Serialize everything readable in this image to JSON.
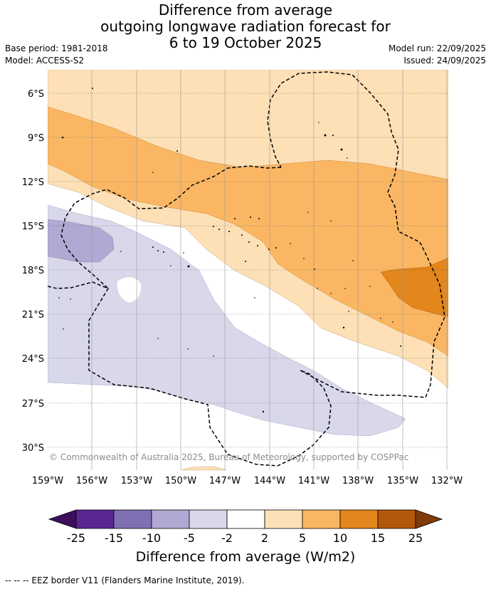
{
  "title": {
    "line1": "Difference from average",
    "line2": "outgoing longwave radiation forecast for",
    "line3": "6 to 19 October 2025"
  },
  "meta": {
    "base_period": "Base period: 1981-2018",
    "model": "Model: ACCESS-S2",
    "model_run": "Model run: 22/09/2025",
    "issued": "Issued: 24/09/2025"
  },
  "map": {
    "lat_labels": [
      "6°S",
      "9°S",
      "12°S",
      "15°S",
      "18°S",
      "21°S",
      "24°S",
      "27°S",
      "30°S"
    ],
    "lon_labels": [
      "159°W",
      "156°W",
      "153°W",
      "150°W",
      "147°W",
      "144°W",
      "141°W",
      "138°W",
      "135°W",
      "132°W"
    ],
    "copyright": "© Commonwealth of Australia 2025, Bureau of Meteorology, supported by COSPPac"
  },
  "colorbar": {
    "title": "Difference from average (W/m2)",
    "ticks": [
      "-25",
      "-15",
      "-10",
      "-5",
      "-2",
      "2",
      "5",
      "10",
      "15",
      "25"
    ],
    "colors": [
      "#3b0f5c",
      "#5a2790",
      "#7e70b2",
      "#b1a9d3",
      "#d8d8ea",
      "#ffffff",
      "#fde0b5",
      "#fbb663",
      "#e3861b",
      "#b2580b",
      "#7f3b08"
    ]
  },
  "footnote": "--  --  -- EEZ border V11 (Flanders Marine Institute, 2019)."
}
